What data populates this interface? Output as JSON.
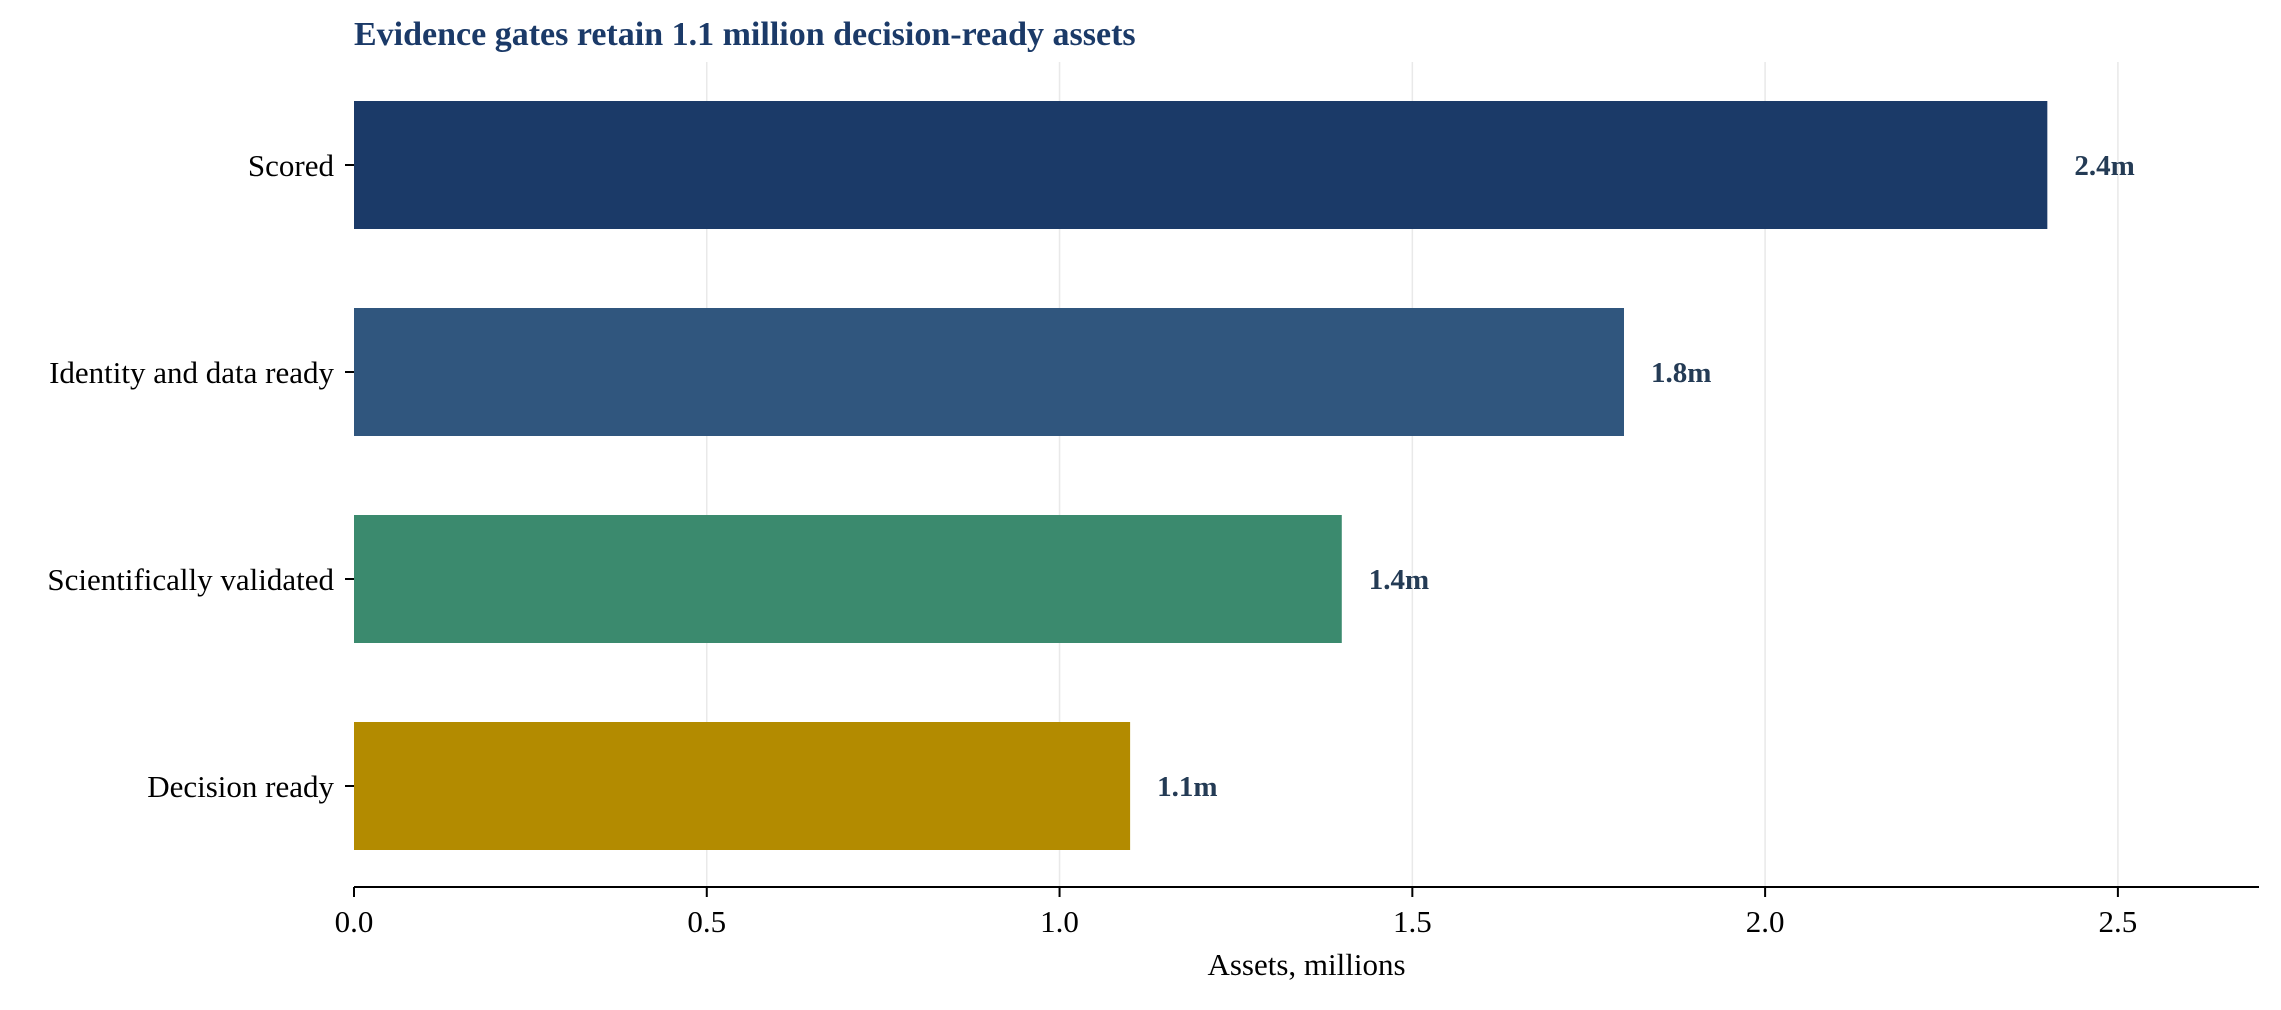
{
  "chart_data": {
    "type": "bar",
    "orientation": "horizontal",
    "title": "Evidence gates retain 1.1 million decision-ready assets",
    "xlabel": "Assets, millions",
    "ylabel": "",
    "categories": [
      "Scored",
      "Identity and data ready",
      "Scientifically validated",
      "Decision ready"
    ],
    "values": [
      2.4,
      1.8,
      1.4,
      1.1
    ],
    "data_labels": [
      "2.4m",
      "1.8m",
      "1.4m",
      "1.1m"
    ],
    "bar_colors": [
      "#1b3a68",
      "#30567e",
      "#3b8a6e",
      "#b38b00"
    ],
    "xlim": [
      0,
      2.7
    ],
    "xticks": [
      0.0,
      0.5,
      1.0,
      1.5,
      2.0,
      2.5
    ],
    "xtick_labels": [
      "0.0",
      "0.5",
      "1.0",
      "1.5",
      "2.0",
      "2.5"
    ],
    "grid": "vertical",
    "legend": "none",
    "title_color": "#1b3a68",
    "label_color": "#243b55"
  }
}
